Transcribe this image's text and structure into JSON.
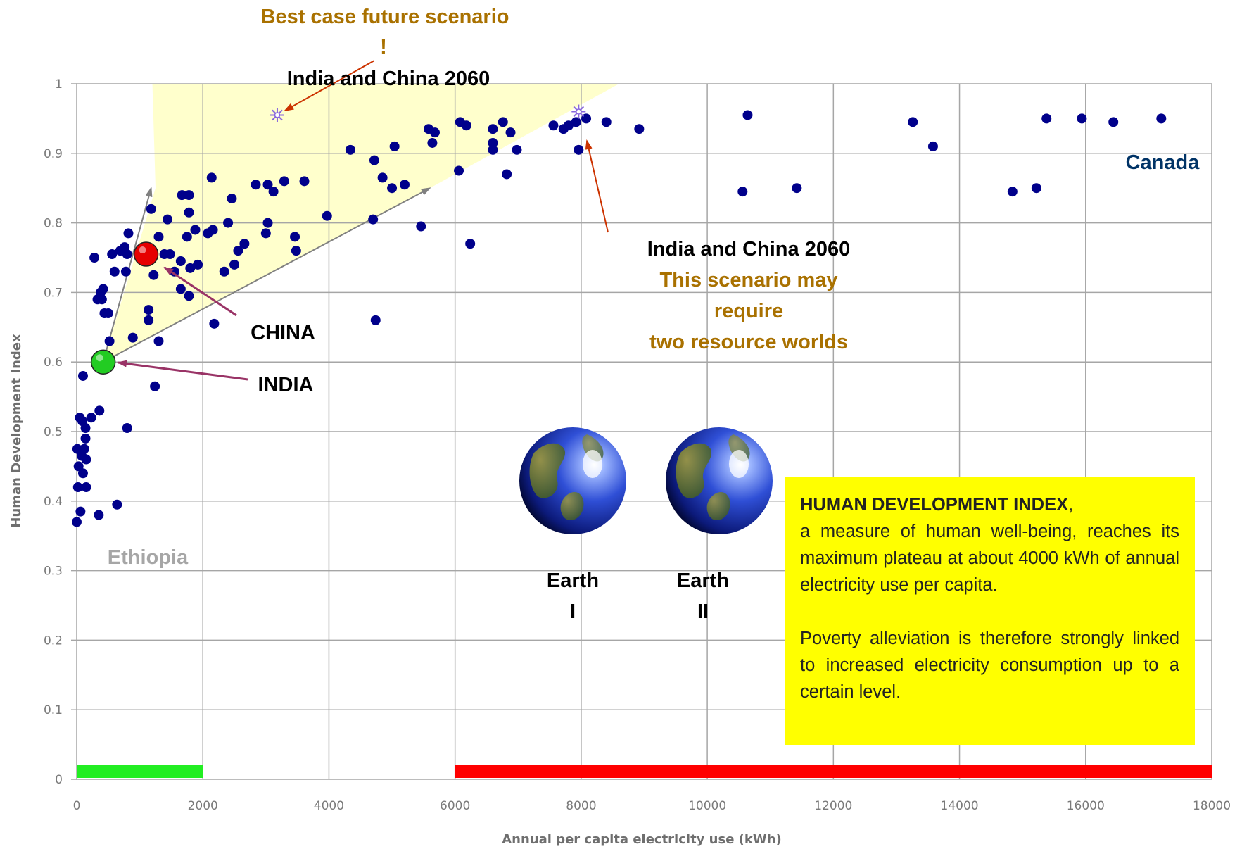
{
  "chart_data": {
    "type": "scatter",
    "xlabel": "Annual per capita electricity use (kWh)",
    "ylabel": "Human Development Index",
    "xlim": [
      0,
      18000
    ],
    "ylim": [
      0,
      1
    ],
    "x_ticks": [
      "0",
      "2000",
      "4000",
      "6000",
      "8000",
      "10000",
      "12000",
      "14000",
      "16000",
      "18000"
    ],
    "y_ticks": [
      "0",
      "0.1",
      "0.2",
      "0.3",
      "0.4",
      "0.5",
      "0.6",
      "0.7",
      "0.8",
      "0.9",
      "1"
    ],
    "grid": true,
    "series": [
      {
        "color": "#00008b",
        "points": [
          [
            0,
            0.37
          ],
          [
            10,
            0.475
          ],
          [
            20,
            0.42
          ],
          [
            30,
            0.45
          ],
          [
            50,
            0.52
          ],
          [
            60,
            0.385
          ],
          [
            80,
            0.465
          ],
          [
            90,
            0.515
          ],
          [
            100,
            0.44
          ],
          [
            100,
            0.58
          ],
          [
            120,
            0.475
          ],
          [
            140,
            0.49
          ],
          [
            140,
            0.505
          ],
          [
            150,
            0.42
          ],
          [
            150,
            0.46
          ],
          [
            230,
            0.52
          ],
          [
            280,
            0.75
          ],
          [
            330,
            0.69
          ],
          [
            350,
            0.38
          ],
          [
            360,
            0.53
          ],
          [
            380,
            0.7
          ],
          [
            400,
            0.69
          ],
          [
            420,
            0.705
          ],
          [
            440,
            0.67
          ],
          [
            500,
            0.67
          ],
          [
            520,
            0.63
          ],
          [
            560,
            0.755
          ],
          [
            600,
            0.73
          ],
          [
            640,
            0.395
          ],
          [
            690,
            0.76
          ],
          [
            760,
            0.765
          ],
          [
            780,
            0.73
          ],
          [
            800,
            0.755
          ],
          [
            800,
            0.505
          ],
          [
            820,
            0.785
          ],
          [
            890,
            0.635
          ],
          [
            1080,
            0.76
          ],
          [
            1140,
            0.66
          ],
          [
            1140,
            0.675
          ],
          [
            1180,
            0.82
          ],
          [
            1220,
            0.725
          ],
          [
            1240,
            0.565
          ],
          [
            1300,
            0.63
          ],
          [
            1300,
            0.78
          ],
          [
            1390,
            0.755
          ],
          [
            1440,
            0.805
          ],
          [
            1480,
            0.755
          ],
          [
            1550,
            0.73
          ],
          [
            1650,
            0.745
          ],
          [
            1650,
            0.705
          ],
          [
            1670,
            0.84
          ],
          [
            1750,
            0.78
          ],
          [
            1780,
            0.84
          ],
          [
            1780,
            0.695
          ],
          [
            1780,
            0.815
          ],
          [
            1800,
            0.735
          ],
          [
            1880,
            0.79
          ],
          [
            1920,
            0.74
          ],
          [
            2080,
            0.785
          ],
          [
            2140,
            0.865
          ],
          [
            2160,
            0.79
          ],
          [
            2180,
            0.655
          ],
          [
            2340,
            0.73
          ],
          [
            2400,
            0.8
          ],
          [
            2460,
            0.835
          ],
          [
            2500,
            0.74
          ],
          [
            2560,
            0.76
          ],
          [
            2660,
            0.77
          ],
          [
            2840,
            0.855
          ],
          [
            3000,
            0.785
          ],
          [
            3030,
            0.855
          ],
          [
            3030,
            0.8
          ],
          [
            3120,
            0.845
          ],
          [
            3290,
            0.86
          ],
          [
            3460,
            0.78
          ],
          [
            3480,
            0.76
          ],
          [
            3610,
            0.86
          ],
          [
            3970,
            0.81
          ],
          [
            4340,
            0.905
          ],
          [
            4700,
            0.805
          ],
          [
            4720,
            0.89
          ],
          [
            4740,
            0.66
          ],
          [
            4850,
            0.865
          ],
          [
            5000,
            0.85
          ],
          [
            5040,
            0.91
          ],
          [
            5200,
            0.855
          ],
          [
            5460,
            0.795
          ],
          [
            5580,
            0.935
          ],
          [
            5640,
            0.915
          ],
          [
            5680,
            0.93
          ],
          [
            6060,
            0.875
          ],
          [
            6080,
            0.945
          ],
          [
            6180,
            0.94
          ],
          [
            6240,
            0.77
          ],
          [
            6600,
            0.935
          ],
          [
            6600,
            0.915
          ],
          [
            6600,
            0.905
          ],
          [
            6760,
            0.945
          ],
          [
            6820,
            0.87
          ],
          [
            6880,
            0.93
          ],
          [
            6980,
            0.905
          ],
          [
            7560,
            0.94
          ],
          [
            7720,
            0.935
          ],
          [
            7800,
            0.94
          ],
          [
            7920,
            0.945
          ],
          [
            7960,
            0.905
          ],
          [
            8080,
            0.95
          ],
          [
            8400,
            0.945
          ],
          [
            8920,
            0.935
          ],
          [
            10560,
            0.845
          ],
          [
            10640,
            0.955
          ],
          [
            11420,
            0.85
          ],
          [
            13260,
            0.945
          ],
          [
            13580,
            0.91
          ],
          [
            14840,
            0.845
          ],
          [
            15220,
            0.85
          ],
          [
            15380,
            0.95
          ],
          [
            15940,
            0.95
          ],
          [
            16440,
            0.945
          ],
          [
            17200,
            0.95
          ]
        ]
      }
    ],
    "highlights": [
      {
        "label": "CHINA",
        "x": 1100,
        "y": 0.755,
        "color": "#e60000"
      },
      {
        "label": "INDIA",
        "x": 420,
        "y": 0.6,
        "color": "#22cc22"
      }
    ],
    "scenario_points": [
      {
        "x": 3180,
        "y": 0.955
      },
      {
        "x": 7960,
        "y": 0.96
      }
    ],
    "wedge_polygon": [
      [
        1200,
        1.0
      ],
      [
        8600,
        1.0
      ],
      [
        5600,
        0.85
      ],
      [
        420,
        0.6
      ],
      [
        1250,
        0.85
      ]
    ],
    "vectors": [
      {
        "from": [
          420,
          0.6
        ],
        "to": [
          1180,
          0.85
        ]
      },
      {
        "from": [
          420,
          0.6
        ],
        "to": [
          5600,
          0.85
        ]
      }
    ],
    "range_bars": [
      {
        "x0": 0,
        "x1": 2000,
        "color": "#22ee22"
      },
      {
        "x0": 6000,
        "x1": 18000,
        "color": "#ff0000"
      }
    ],
    "annotations": {
      "best_case_title": "Best case future scenario",
      "best_case_exclaim": "!",
      "india_china_top": "India and China 2060",
      "india_china_right": "India and China 2060",
      "scenario_line1": "This scenario may",
      "scenario_line2": "require",
      "scenario_line3": "two resource worlds",
      "china": "CHINA",
      "india": "INDIA",
      "canada": "Canada",
      "ethiopia": "Ethiopia",
      "earth1_top": "Earth",
      "earth1_bottom": "I",
      "earth2_top": "Earth",
      "earth2_bottom": "II"
    },
    "colors": {
      "annotation_gold": "#a97100",
      "canada_blue": "#003366",
      "ethiopia_gray": "#a6a6a6",
      "arrow_red": "#cc3300",
      "arrow_purple": "#993366",
      "wedge_fill": "#ffffcc",
      "vector_gray": "#808080"
    }
  },
  "note": {
    "heading": "HUMAN DEVELOPMENT INDEX",
    "heading_suffix": ",",
    "body1": "a measure of human well-being, reaches its maximum plateau at about 4000 kWh of annual electricity use per capita.",
    "body2": "Poverty alleviation is therefore strongly linked to increased electricity consumption up to a certain level."
  }
}
